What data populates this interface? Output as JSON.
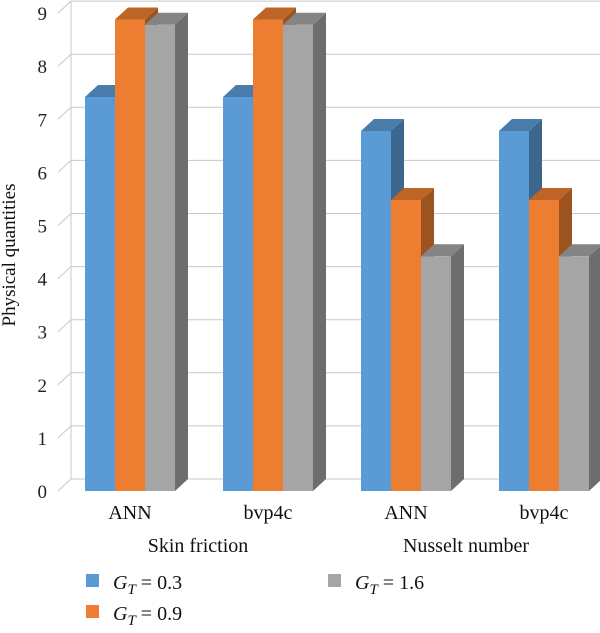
{
  "chart_data": {
    "type": "bar",
    "ylabel": "Physical quantities",
    "ylim": [
      0,
      9
    ],
    "yticks": [
      0,
      1,
      2,
      3,
      4,
      5,
      6,
      7,
      8,
      9
    ],
    "grid": true,
    "legend_position": "bottom",
    "categories": [
      "ANN",
      "bvp4c",
      "ANN",
      "bvp4c"
    ],
    "groups": [
      {
        "label": "Skin friction",
        "categories": [
          "ANN",
          "bvp4c"
        ]
      },
      {
        "label": "Nusselt number",
        "categories": [
          "ANN",
          "bvp4c"
        ]
      }
    ],
    "series": [
      {
        "name": "G_T = 0.3",
        "legend_sub": "T",
        "legend_value": "= 0.3",
        "color": "#5b9bd5",
        "values": [
          7.42,
          7.42,
          6.78,
          6.78
        ]
      },
      {
        "name": "G_T = 0.9",
        "legend_sub": "T",
        "legend_value": "= 0.9",
        "color": "#ed7d31",
        "values": [
          8.88,
          8.88,
          5.48,
          5.48
        ]
      },
      {
        "name": "G_T = 1.6",
        "legend_sub": "T",
        "legend_value": "= 1.6",
        "color": "#a5a5a5",
        "values": [
          8.78,
          8.78,
          4.42,
          4.42
        ]
      }
    ]
  }
}
